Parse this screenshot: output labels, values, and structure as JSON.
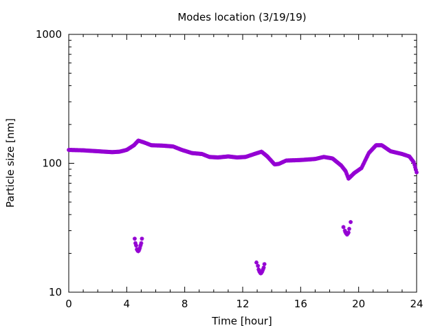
{
  "chart_data": {
    "type": "scatter",
    "title": "Modes location (3/19/19)",
    "xlabel": "Time [hour]",
    "ylabel": "Particle size [nm]",
    "xlim": [
      0,
      24
    ],
    "ylim": [
      10,
      1000
    ],
    "yscale": "log",
    "grid": false,
    "legend": "none",
    "marker": "star",
    "color": "#9400d3",
    "xticks": [
      0,
      4,
      8,
      12,
      16,
      20,
      24
    ],
    "yticks": [
      10,
      100,
      1000
    ],
    "main_curve": {
      "x": [
        0,
        1,
        2,
        3,
        3.5,
        4,
        4.5,
        4.8,
        5.2,
        5.7,
        6.5,
        7.2,
        7.8,
        8.5,
        9.2,
        9.7,
        10.3,
        11,
        11.6,
        12.2,
        12.8,
        13.3,
        13.7,
        14.2,
        14.5,
        15,
        16,
        17,
        17.6,
        18.2,
        18.8,
        19.1,
        19.3,
        19.7,
        20.2,
        20.7,
        21.2,
        21.6,
        22.2,
        23,
        23.5,
        23.8,
        24
      ],
      "y": [
        127,
        126,
        124,
        122,
        123,
        127,
        138,
        150,
        145,
        138,
        137,
        135,
        127,
        120,
        118,
        112,
        111,
        113,
        111,
        112,
        118,
        123,
        113,
        98,
        99,
        105,
        106,
        108,
        112,
        109,
        96,
        87,
        76,
        84,
        92,
        120,
        138,
        138,
        124,
        118,
        113,
        102,
        85
      ]
    },
    "lower_modes": [
      {
        "x": [
          4.55,
          4.6,
          4.65,
          4.7,
          4.75,
          4.8,
          4.85,
          4.9,
          4.95,
          5.0,
          5.05
        ],
        "y": [
          26,
          24,
          23,
          21.5,
          21,
          20.8,
          21.2,
          22,
          23,
          24,
          26
        ]
      },
      {
        "x": [
          12.95,
          13.05,
          13.1,
          13.15,
          13.2,
          13.25,
          13.3,
          13.35,
          13.4,
          13.45,
          13.5
        ],
        "y": [
          17,
          16,
          15,
          14.5,
          14.2,
          14,
          14.2,
          14.5,
          15,
          15.5,
          16.5
        ]
      },
      {
        "x": [
          18.95,
          19.05,
          19.1,
          19.15,
          19.2,
          19.25,
          19.3,
          19.35,
          19.45
        ],
        "y": [
          32,
          30,
          29,
          28.5,
          28,
          28.5,
          29,
          31,
          35
        ]
      }
    ]
  }
}
